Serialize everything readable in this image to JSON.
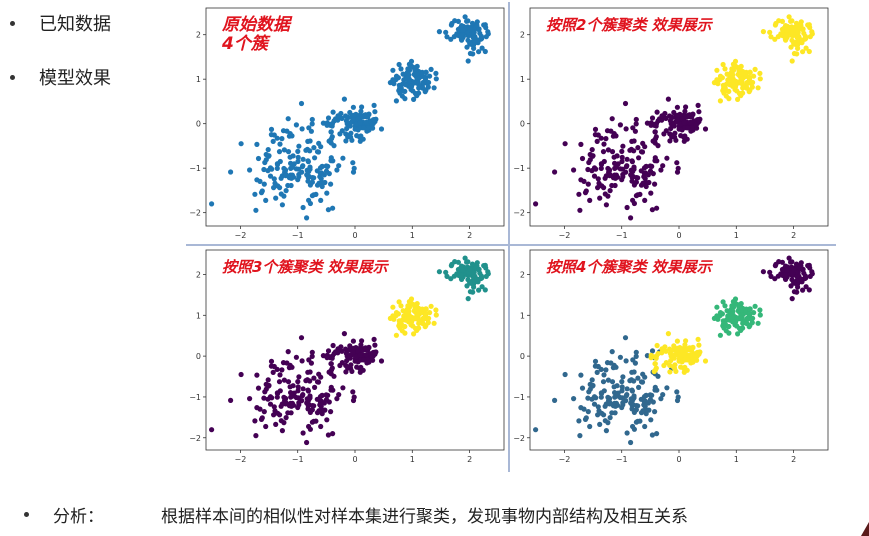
{
  "bullets": [
    "已知数据",
    "模型效果"
  ],
  "analysis": {
    "label": "分析：",
    "text": "根据样本间的相似性对样本集进行聚类，发现事物内部结构及相互关系"
  },
  "colors": {
    "title": "#e0141e",
    "original_points": "#1f77b4",
    "viridis": {
      "purple": "#440154",
      "blue": "#31688e",
      "teal": "#21918c",
      "green": "#35b779",
      "yellow": "#fde725"
    }
  },
  "chart_data": [
    {
      "type": "scatter",
      "title_lines": [
        "原始数据",
        "4个簇"
      ],
      "xticks": [
        -2,
        -1,
        0,
        1,
        2
      ],
      "yticks": [
        -2,
        -1,
        0,
        1,
        2
      ],
      "xlim": [
        -2.6,
        2.6
      ],
      "ylim": [
        -2.3,
        2.6
      ],
      "clusters": [
        {
          "center": [
            -1,
            -1
          ],
          "spread": 0.45,
          "n": 170,
          "color": "#1f77b4"
        },
        {
          "center": [
            0,
            0
          ],
          "spread": 0.22,
          "n": 110,
          "color": "#1f77b4"
        },
        {
          "center": [
            1,
            1
          ],
          "spread": 0.18,
          "n": 100,
          "color": "#1f77b4"
        },
        {
          "center": [
            2,
            2
          ],
          "spread": 0.17,
          "n": 100,
          "color": "#1f77b4"
        }
      ]
    },
    {
      "type": "scatter",
      "title_lines": [
        "按照2个簇聚类 效果展示"
      ],
      "xticks": [
        -2,
        -1,
        0,
        1,
        2
      ],
      "yticks": [
        -2,
        -1,
        0,
        1,
        2
      ],
      "xlim": [
        -2.6,
        2.6
      ],
      "ylim": [
        -2.3,
        2.6
      ],
      "clusters": [
        {
          "center": [
            -1,
            -1
          ],
          "spread": 0.45,
          "n": 170,
          "color": "#440154"
        },
        {
          "center": [
            0,
            0
          ],
          "spread": 0.22,
          "n": 110,
          "color": "#440154"
        },
        {
          "center": [
            1,
            1
          ],
          "spread": 0.18,
          "n": 100,
          "color": "#fde725"
        },
        {
          "center": [
            2,
            2
          ],
          "spread": 0.17,
          "n": 100,
          "color": "#fde725"
        }
      ]
    },
    {
      "type": "scatter",
      "title_lines": [
        "按照3个簇聚类 效果展示"
      ],
      "xticks": [
        -2,
        -1,
        0,
        1,
        2
      ],
      "yticks": [
        -2,
        -1,
        0,
        1,
        2
      ],
      "xlim": [
        -2.6,
        2.6
      ],
      "ylim": [
        -2.3,
        2.6
      ],
      "clusters": [
        {
          "center": [
            -1,
            -1
          ],
          "spread": 0.45,
          "n": 170,
          "color": "#440154"
        },
        {
          "center": [
            0,
            0
          ],
          "spread": 0.22,
          "n": 110,
          "color": "#440154"
        },
        {
          "center": [
            1,
            1
          ],
          "spread": 0.18,
          "n": 100,
          "color": "#fde725"
        },
        {
          "center": [
            2,
            2
          ],
          "spread": 0.17,
          "n": 100,
          "color": "#21918c"
        }
      ]
    },
    {
      "type": "scatter",
      "title_lines": [
        "按照4个簇聚类 效果展示"
      ],
      "xticks": [
        -2,
        -1,
        0,
        1,
        2
      ],
      "yticks": [
        -2,
        -1,
        0,
        1,
        2
      ],
      "xlim": [
        -2.6,
        2.6
      ],
      "ylim": [
        -2.3,
        2.6
      ],
      "clusters": [
        {
          "center": [
            -1,
            -1
          ],
          "spread": 0.45,
          "n": 170,
          "color": "#31688e"
        },
        {
          "center": [
            0,
            0
          ],
          "spread": 0.22,
          "n": 110,
          "color": "#fde725"
        },
        {
          "center": [
            1,
            1
          ],
          "spread": 0.18,
          "n": 100,
          "color": "#35b779"
        },
        {
          "center": [
            2,
            2
          ],
          "spread": 0.17,
          "n": 100,
          "color": "#440154"
        }
      ]
    }
  ]
}
